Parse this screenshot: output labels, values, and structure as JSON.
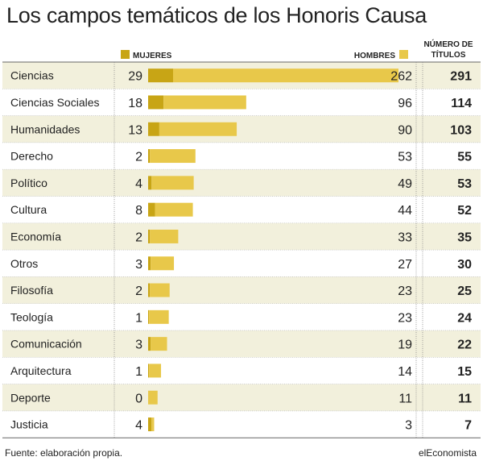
{
  "title": "Los campos temáticos de los Honoris Causa",
  "colors": {
    "mujeres": "#c8a515",
    "hombres": "#e8c84a",
    "row_shade": "#f2f0dc",
    "grid": "#bbbbbb",
    "text": "#222222"
  },
  "legend": {
    "mujeres": "MUJERES",
    "hombres": "HOMBRES",
    "total_line1": "NÚMERO DE",
    "total_line2": "TÍTULOS"
  },
  "footer": {
    "source": "Fuente: elaboración propia.",
    "brand": "elEconomista"
  },
  "chart_data": {
    "type": "bar",
    "stacked": true,
    "orientation": "horizontal",
    "categories": [
      "Ciencias",
      "Ciencias Sociales",
      "Humanidades",
      "Derecho",
      "Político",
      "Cultura",
      "Economía",
      "Otros",
      "Filosofía",
      "Teología",
      "Comunicación",
      "Arquitectura",
      "Deporte",
      "Justicia"
    ],
    "series": [
      {
        "name": "MUJERES",
        "values": [
          29,
          18,
          13,
          2,
          4,
          8,
          2,
          3,
          2,
          1,
          3,
          1,
          0,
          4
        ]
      },
      {
        "name": "HOMBRES",
        "values": [
          262,
          96,
          90,
          53,
          49,
          44,
          33,
          27,
          23,
          23,
          19,
          14,
          11,
          3
        ]
      }
    ],
    "totals": [
      291,
      114,
      103,
      55,
      53,
      52,
      35,
      30,
      25,
      24,
      22,
      15,
      11,
      7
    ],
    "totals_label": "NÚMERO DE TÍTULOS",
    "legend_position": "top"
  }
}
